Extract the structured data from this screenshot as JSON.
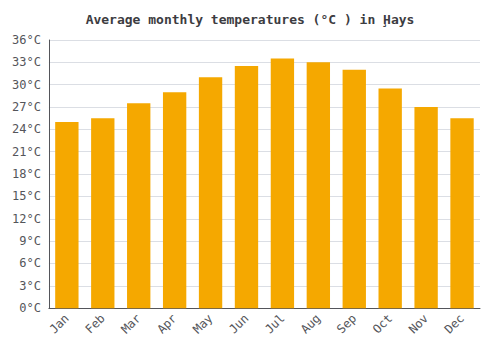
{
  "chart_data": {
    "type": "bar",
    "title": "Average monthly temperatures (°C ) in Ḩays",
    "categories": [
      "Jan",
      "Feb",
      "Mar",
      "Apr",
      "May",
      "Jun",
      "Jul",
      "Aug",
      "Sep",
      "Oct",
      "Nov",
      "Dec"
    ],
    "values": [
      25.0,
      25.5,
      27.5,
      29.0,
      31.0,
      32.5,
      33.5,
      33.0,
      32.0,
      29.5,
      27.0,
      25.5
    ],
    "color": "#F5A800",
    "ylim": [
      0,
      36
    ],
    "yticks": [
      {
        "value": 0,
        "label": "0°C"
      },
      {
        "value": 3,
        "label": "3°C"
      },
      {
        "value": 6,
        "label": "6°C"
      },
      {
        "value": 9,
        "label": "9°C"
      },
      {
        "value": 12,
        "label": "12°C"
      },
      {
        "value": 15,
        "label": "15°C"
      },
      {
        "value": 18,
        "label": "18°C"
      },
      {
        "value": 21,
        "label": "21°C"
      },
      {
        "value": 24,
        "label": "24°C"
      },
      {
        "value": 27,
        "label": "27°C"
      },
      {
        "value": 30,
        "label": "30°C"
      },
      {
        "value": 33,
        "label": "33°C"
      },
      {
        "value": 36,
        "label": "36°C"
      }
    ],
    "grid": true
  }
}
